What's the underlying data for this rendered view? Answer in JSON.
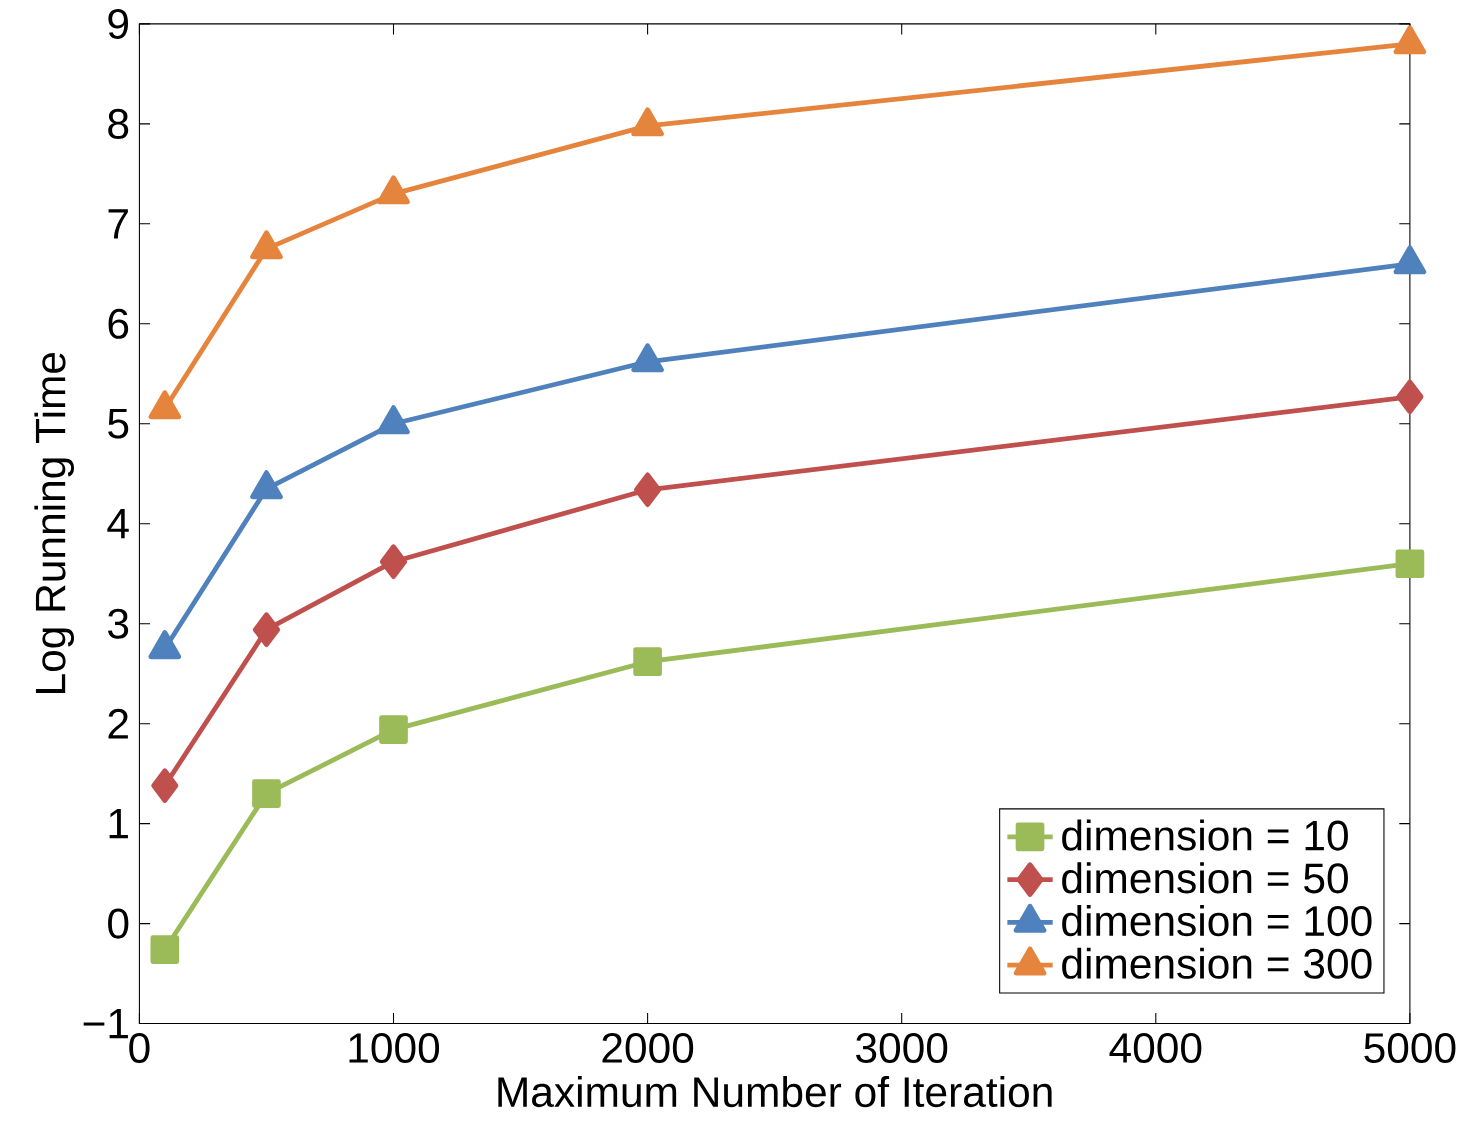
{
  "chart_data": {
    "type": "line",
    "xlabel": "Maximum Number of Iteration",
    "ylabel": "Log Running Time",
    "x": [
      100,
      500,
      1000,
      2000,
      5000
    ],
    "series": [
      {
        "name": "dimension = 10",
        "color": "#9bbb59",
        "marker": "square",
        "values": [
          -0.26,
          1.3,
          1.94,
          2.62,
          3.6
        ]
      },
      {
        "name": "dimension = 50",
        "color": "#c0504d",
        "marker": "diamond",
        "values": [
          1.38,
          2.94,
          3.62,
          4.34,
          5.27
        ]
      },
      {
        "name": "dimension = 100",
        "color": "#4f81bd",
        "marker": "triangle",
        "values": [
          2.75,
          4.35,
          5.0,
          5.62,
          6.6
        ]
      },
      {
        "name": "dimension = 300",
        "color": "#e5853d",
        "marker": "triangle",
        "values": [
          5.15,
          6.75,
          7.3,
          7.98,
          8.8
        ]
      }
    ],
    "xlim": [
      0,
      5000
    ],
    "ylim": [
      -1,
      9
    ],
    "xticks": [
      0,
      1000,
      2000,
      3000,
      4000,
      5000
    ],
    "yticks": [
      {
        "value": -1,
        "label": "−1"
      },
      0,
      1,
      2,
      3,
      4,
      5,
      6,
      7,
      8,
      9
    ],
    "grid": false,
    "legend": "bottom right",
    "line_style": "solid"
  }
}
